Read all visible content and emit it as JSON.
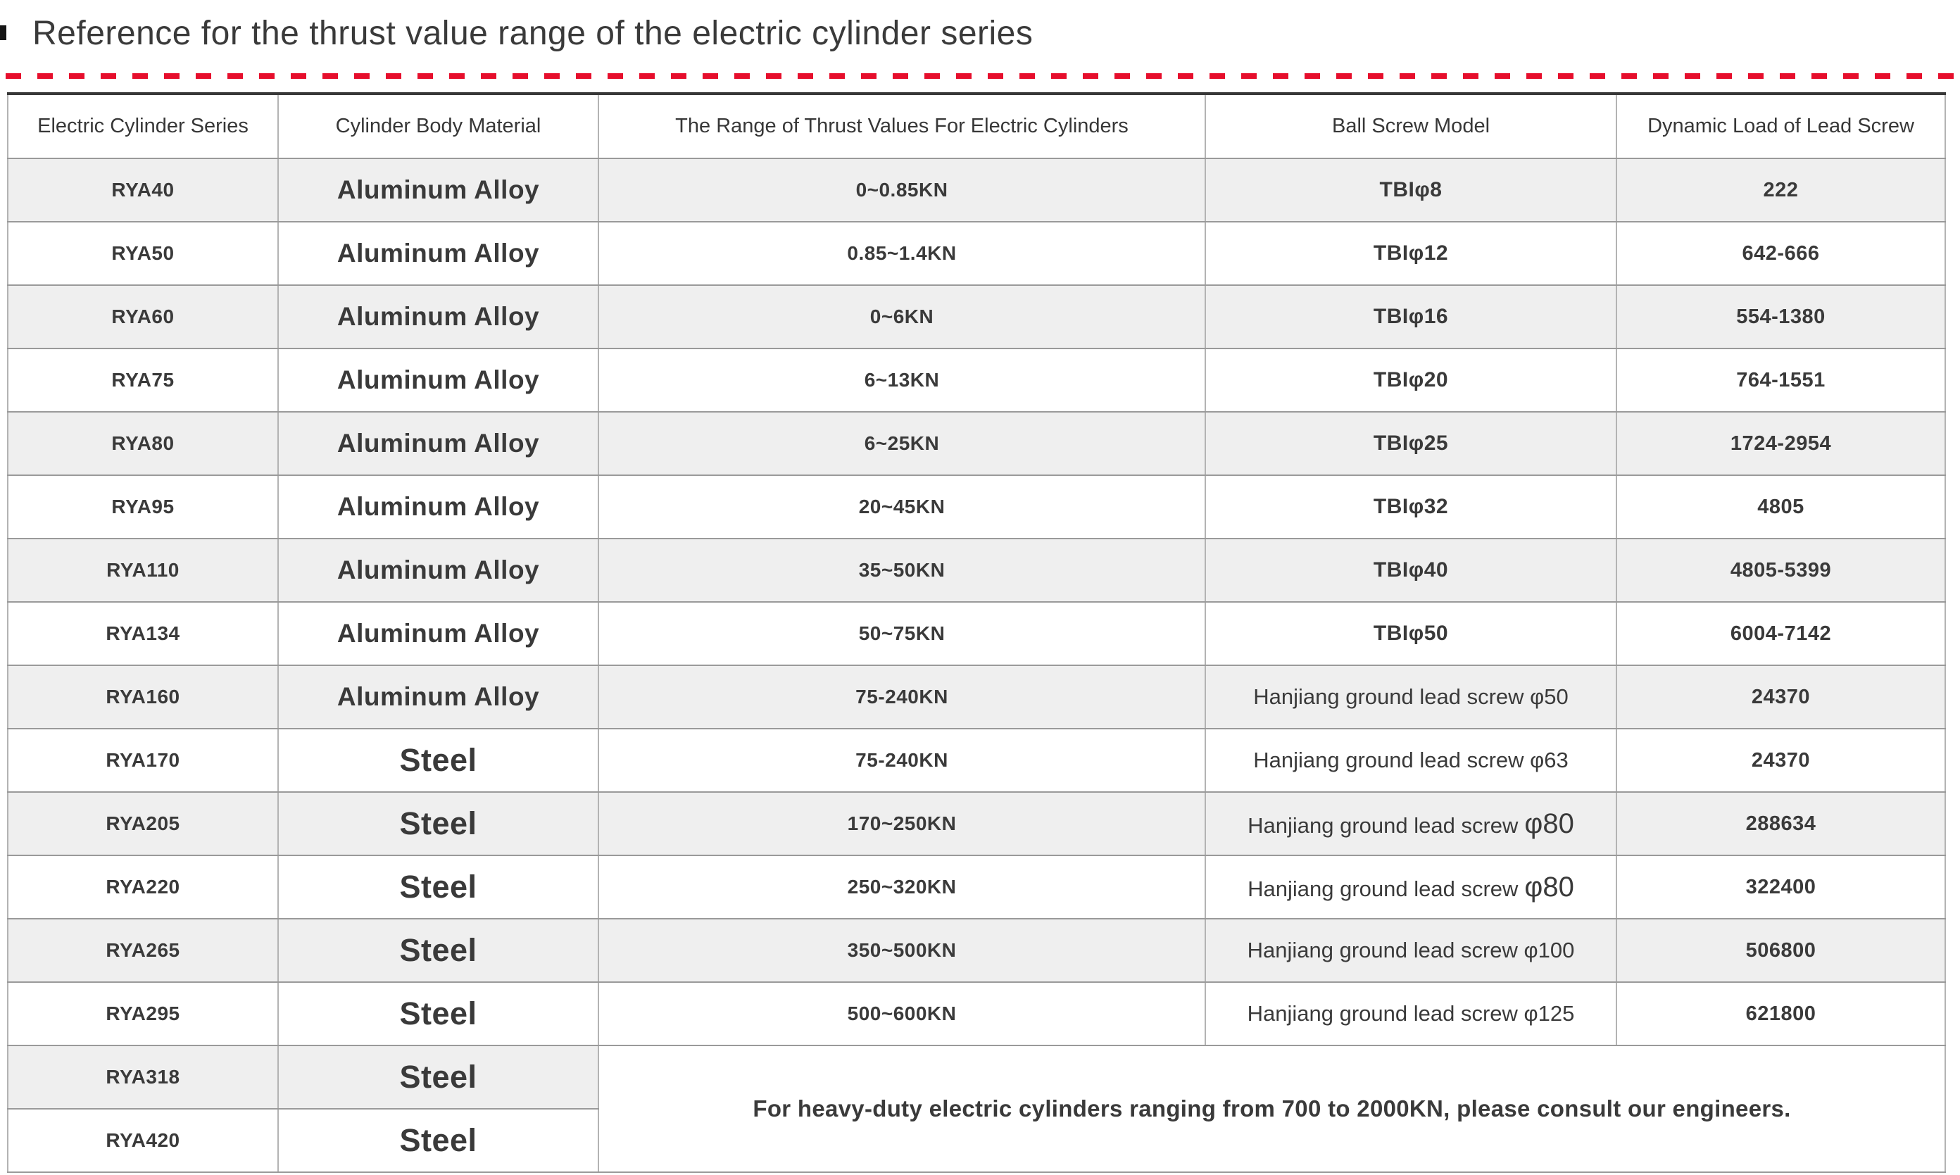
{
  "page": {
    "title": "Reference for the thrust value range of the electric cylinder series"
  },
  "colors": {
    "accent_red_dashes": "#e60e2c",
    "row_alt_gray": "#efefef",
    "text_dark": "#3a3a3a",
    "table_top_border": "#383838"
  },
  "table": {
    "columns": [
      "Electric Cylinder Series",
      "Cylinder Body Material",
      "The Range of Thrust Values For Electric Cylinders",
      "Ball Screw Model",
      "Dynamic Load of Lead Screw"
    ],
    "rows": [
      {
        "series": "RYA40",
        "material": "Aluminum Alloy",
        "thrust": "0~0.85KN",
        "model": "TBIφ8",
        "model_big": "",
        "load": "222"
      },
      {
        "series": "RYA50",
        "material": "Aluminum Alloy",
        "thrust": "0.85~1.4KN",
        "model": "TBIφ12",
        "model_big": "",
        "load": "642-666"
      },
      {
        "series": "RYA60",
        "material": "Aluminum Alloy",
        "thrust": "0~6KN",
        "model": "TBIφ16",
        "model_big": "",
        "load": "554-1380"
      },
      {
        "series": "RYA75",
        "material": "Aluminum Alloy",
        "thrust": "6~13KN",
        "model": "TBIφ20",
        "model_big": "",
        "load": "764-1551"
      },
      {
        "series": "RYA80",
        "material": "Aluminum Alloy",
        "thrust": "6~25KN",
        "model": "TBIφ25",
        "model_big": "",
        "load": "1724-2954"
      },
      {
        "series": "RYA95",
        "material": "Aluminum Alloy",
        "thrust": "20~45KN",
        "model": "TBIφ32",
        "model_big": "",
        "load": "4805"
      },
      {
        "series": "RYA110",
        "material": "Aluminum Alloy",
        "thrust": "35~50KN",
        "model": "TBIφ40",
        "model_big": "",
        "load": "4805-5399"
      },
      {
        "series": "RYA134",
        "material": "Aluminum Alloy",
        "thrust": "50~75KN",
        "model": "TBIφ50",
        "model_big": "",
        "load": "6004-7142"
      },
      {
        "series": "RYA160",
        "material": "Aluminum Alloy",
        "thrust": "75-240KN",
        "model": "Hanjiang ground lead screw φ50",
        "model_big": "",
        "load": "24370"
      },
      {
        "series": "RYA170",
        "material": "Steel",
        "thrust": "75-240KN",
        "model": "Hanjiang ground lead screw φ63",
        "model_big": "",
        "load": "24370"
      },
      {
        "series": "RYA205",
        "material": "Steel",
        "thrust": "170~250KN",
        "model": "Hanjiang ground lead screw",
        "model_big": "φ80",
        "load": "288634"
      },
      {
        "series": "RYA220",
        "material": "Steel",
        "thrust": "250~320KN",
        "model": "Hanjiang ground lead screw",
        "model_big": "φ80",
        "load": "322400"
      },
      {
        "series": "RYA265",
        "material": "Steel",
        "thrust": "350~500KN",
        "model": "Hanjiang ground lead screw φ100",
        "model_big": "",
        "load": "506800"
      },
      {
        "series": "RYA295",
        "material": "Steel",
        "thrust": "500~600KN",
        "model": "Hanjiang ground lead screw φ125",
        "model_big": "",
        "load": "621800"
      },
      {
        "series": "RYA318",
        "material": "Steel"
      },
      {
        "series": "RYA420",
        "material": "Steel"
      }
    ],
    "note": "For heavy-duty electric cylinders ranging from 700 to 2000KN, please consult our engineers."
  }
}
